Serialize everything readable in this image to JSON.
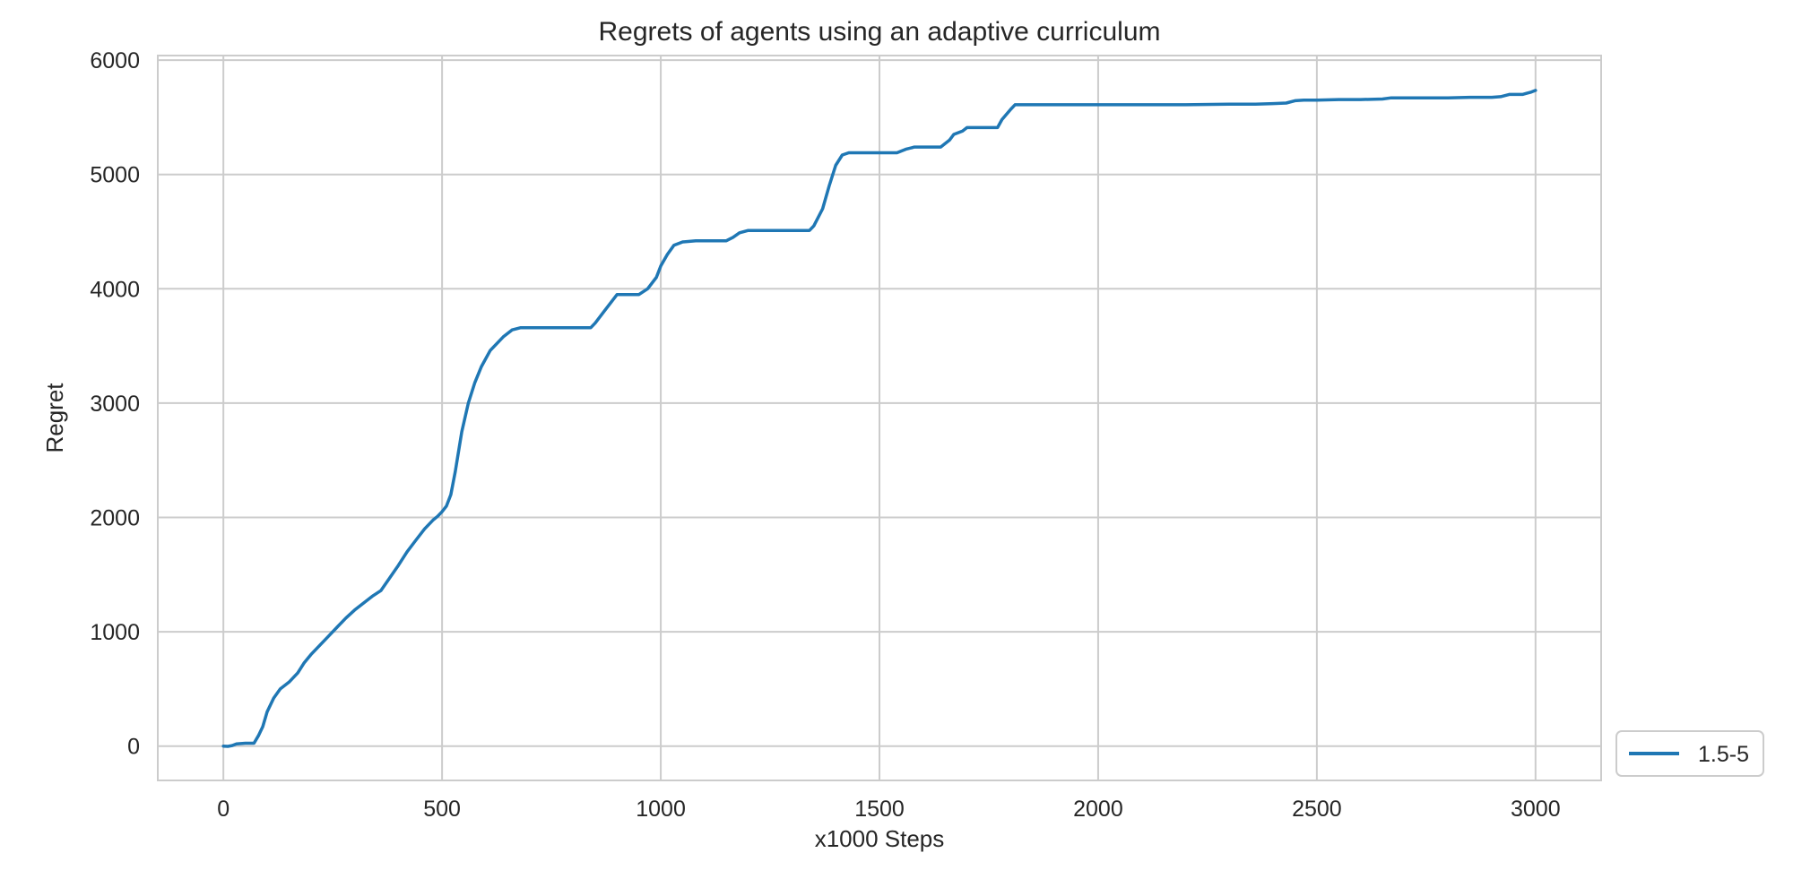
{
  "chart_data": {
    "type": "line",
    "title": "Regrets of agents using an adaptive curriculum",
    "xlabel": "x1000 Steps",
    "ylabel": "Regret",
    "xlim": [
      -150,
      3150
    ],
    "ylim": [
      -300,
      6040
    ],
    "x_ticks": [
      0,
      500,
      1000,
      1500,
      2000,
      2500,
      3000
    ],
    "y_ticks": [
      0,
      1000,
      2000,
      3000,
      4000,
      5000,
      6000
    ],
    "grid": true,
    "legend_position": "lower-right-outside",
    "series": [
      {
        "name": "1.5-5",
        "color": "#1f77b4",
        "points": [
          [
            0,
            0
          ],
          [
            10,
            -2
          ],
          [
            20,
            5
          ],
          [
            30,
            20
          ],
          [
            50,
            25
          ],
          [
            70,
            25
          ],
          [
            80,
            90
          ],
          [
            90,
            170
          ],
          [
            100,
            300
          ],
          [
            115,
            420
          ],
          [
            130,
            500
          ],
          [
            150,
            560
          ],
          [
            170,
            640
          ],
          [
            185,
            730
          ],
          [
            200,
            800
          ],
          [
            220,
            880
          ],
          [
            240,
            960
          ],
          [
            260,
            1040
          ],
          [
            280,
            1120
          ],
          [
            300,
            1190
          ],
          [
            320,
            1250
          ],
          [
            340,
            1310
          ],
          [
            360,
            1360
          ],
          [
            380,
            1470
          ],
          [
            400,
            1580
          ],
          [
            420,
            1700
          ],
          [
            440,
            1800
          ],
          [
            460,
            1900
          ],
          [
            480,
            1980
          ],
          [
            490,
            2010
          ],
          [
            500,
            2050
          ],
          [
            510,
            2100
          ],
          [
            520,
            2200
          ],
          [
            530,
            2400
          ],
          [
            545,
            2750
          ],
          [
            560,
            3000
          ],
          [
            575,
            3180
          ],
          [
            590,
            3320
          ],
          [
            610,
            3460
          ],
          [
            640,
            3580
          ],
          [
            660,
            3640
          ],
          [
            680,
            3660
          ],
          [
            700,
            3660
          ],
          [
            740,
            3660
          ],
          [
            800,
            3660
          ],
          [
            840,
            3660
          ],
          [
            850,
            3700
          ],
          [
            870,
            3800
          ],
          [
            890,
            3900
          ],
          [
            900,
            3950
          ],
          [
            930,
            3950
          ],
          [
            950,
            3950
          ],
          [
            970,
            4000
          ],
          [
            990,
            4100
          ],
          [
            1000,
            4200
          ],
          [
            1015,
            4300
          ],
          [
            1030,
            4380
          ],
          [
            1050,
            4410
          ],
          [
            1080,
            4420
          ],
          [
            1150,
            4420
          ],
          [
            1165,
            4450
          ],
          [
            1180,
            4490
          ],
          [
            1200,
            4510
          ],
          [
            1300,
            4510
          ],
          [
            1340,
            4510
          ],
          [
            1350,
            4550
          ],
          [
            1370,
            4700
          ],
          [
            1385,
            4900
          ],
          [
            1400,
            5080
          ],
          [
            1415,
            5170
          ],
          [
            1430,
            5190
          ],
          [
            1500,
            5190
          ],
          [
            1540,
            5190
          ],
          [
            1560,
            5220
          ],
          [
            1580,
            5240
          ],
          [
            1640,
            5240
          ],
          [
            1660,
            5300
          ],
          [
            1670,
            5350
          ],
          [
            1690,
            5380
          ],
          [
            1700,
            5410
          ],
          [
            1770,
            5410
          ],
          [
            1780,
            5480
          ],
          [
            1800,
            5570
          ],
          [
            1810,
            5610
          ],
          [
            1900,
            5610
          ],
          [
            2000,
            5610
          ],
          [
            2100,
            5610
          ],
          [
            2200,
            5610
          ],
          [
            2300,
            5615
          ],
          [
            2360,
            5615
          ],
          [
            2400,
            5620
          ],
          [
            2430,
            5625
          ],
          [
            2450,
            5645
          ],
          [
            2470,
            5650
          ],
          [
            2500,
            5650
          ],
          [
            2550,
            5655
          ],
          [
            2600,
            5655
          ],
          [
            2650,
            5660
          ],
          [
            2670,
            5670
          ],
          [
            2700,
            5670
          ],
          [
            2800,
            5670
          ],
          [
            2850,
            5675
          ],
          [
            2900,
            5675
          ],
          [
            2920,
            5680
          ],
          [
            2940,
            5700
          ],
          [
            2970,
            5700
          ],
          [
            2980,
            5710
          ],
          [
            2990,
            5720
          ],
          [
            3000,
            5735
          ]
        ]
      }
    ]
  }
}
